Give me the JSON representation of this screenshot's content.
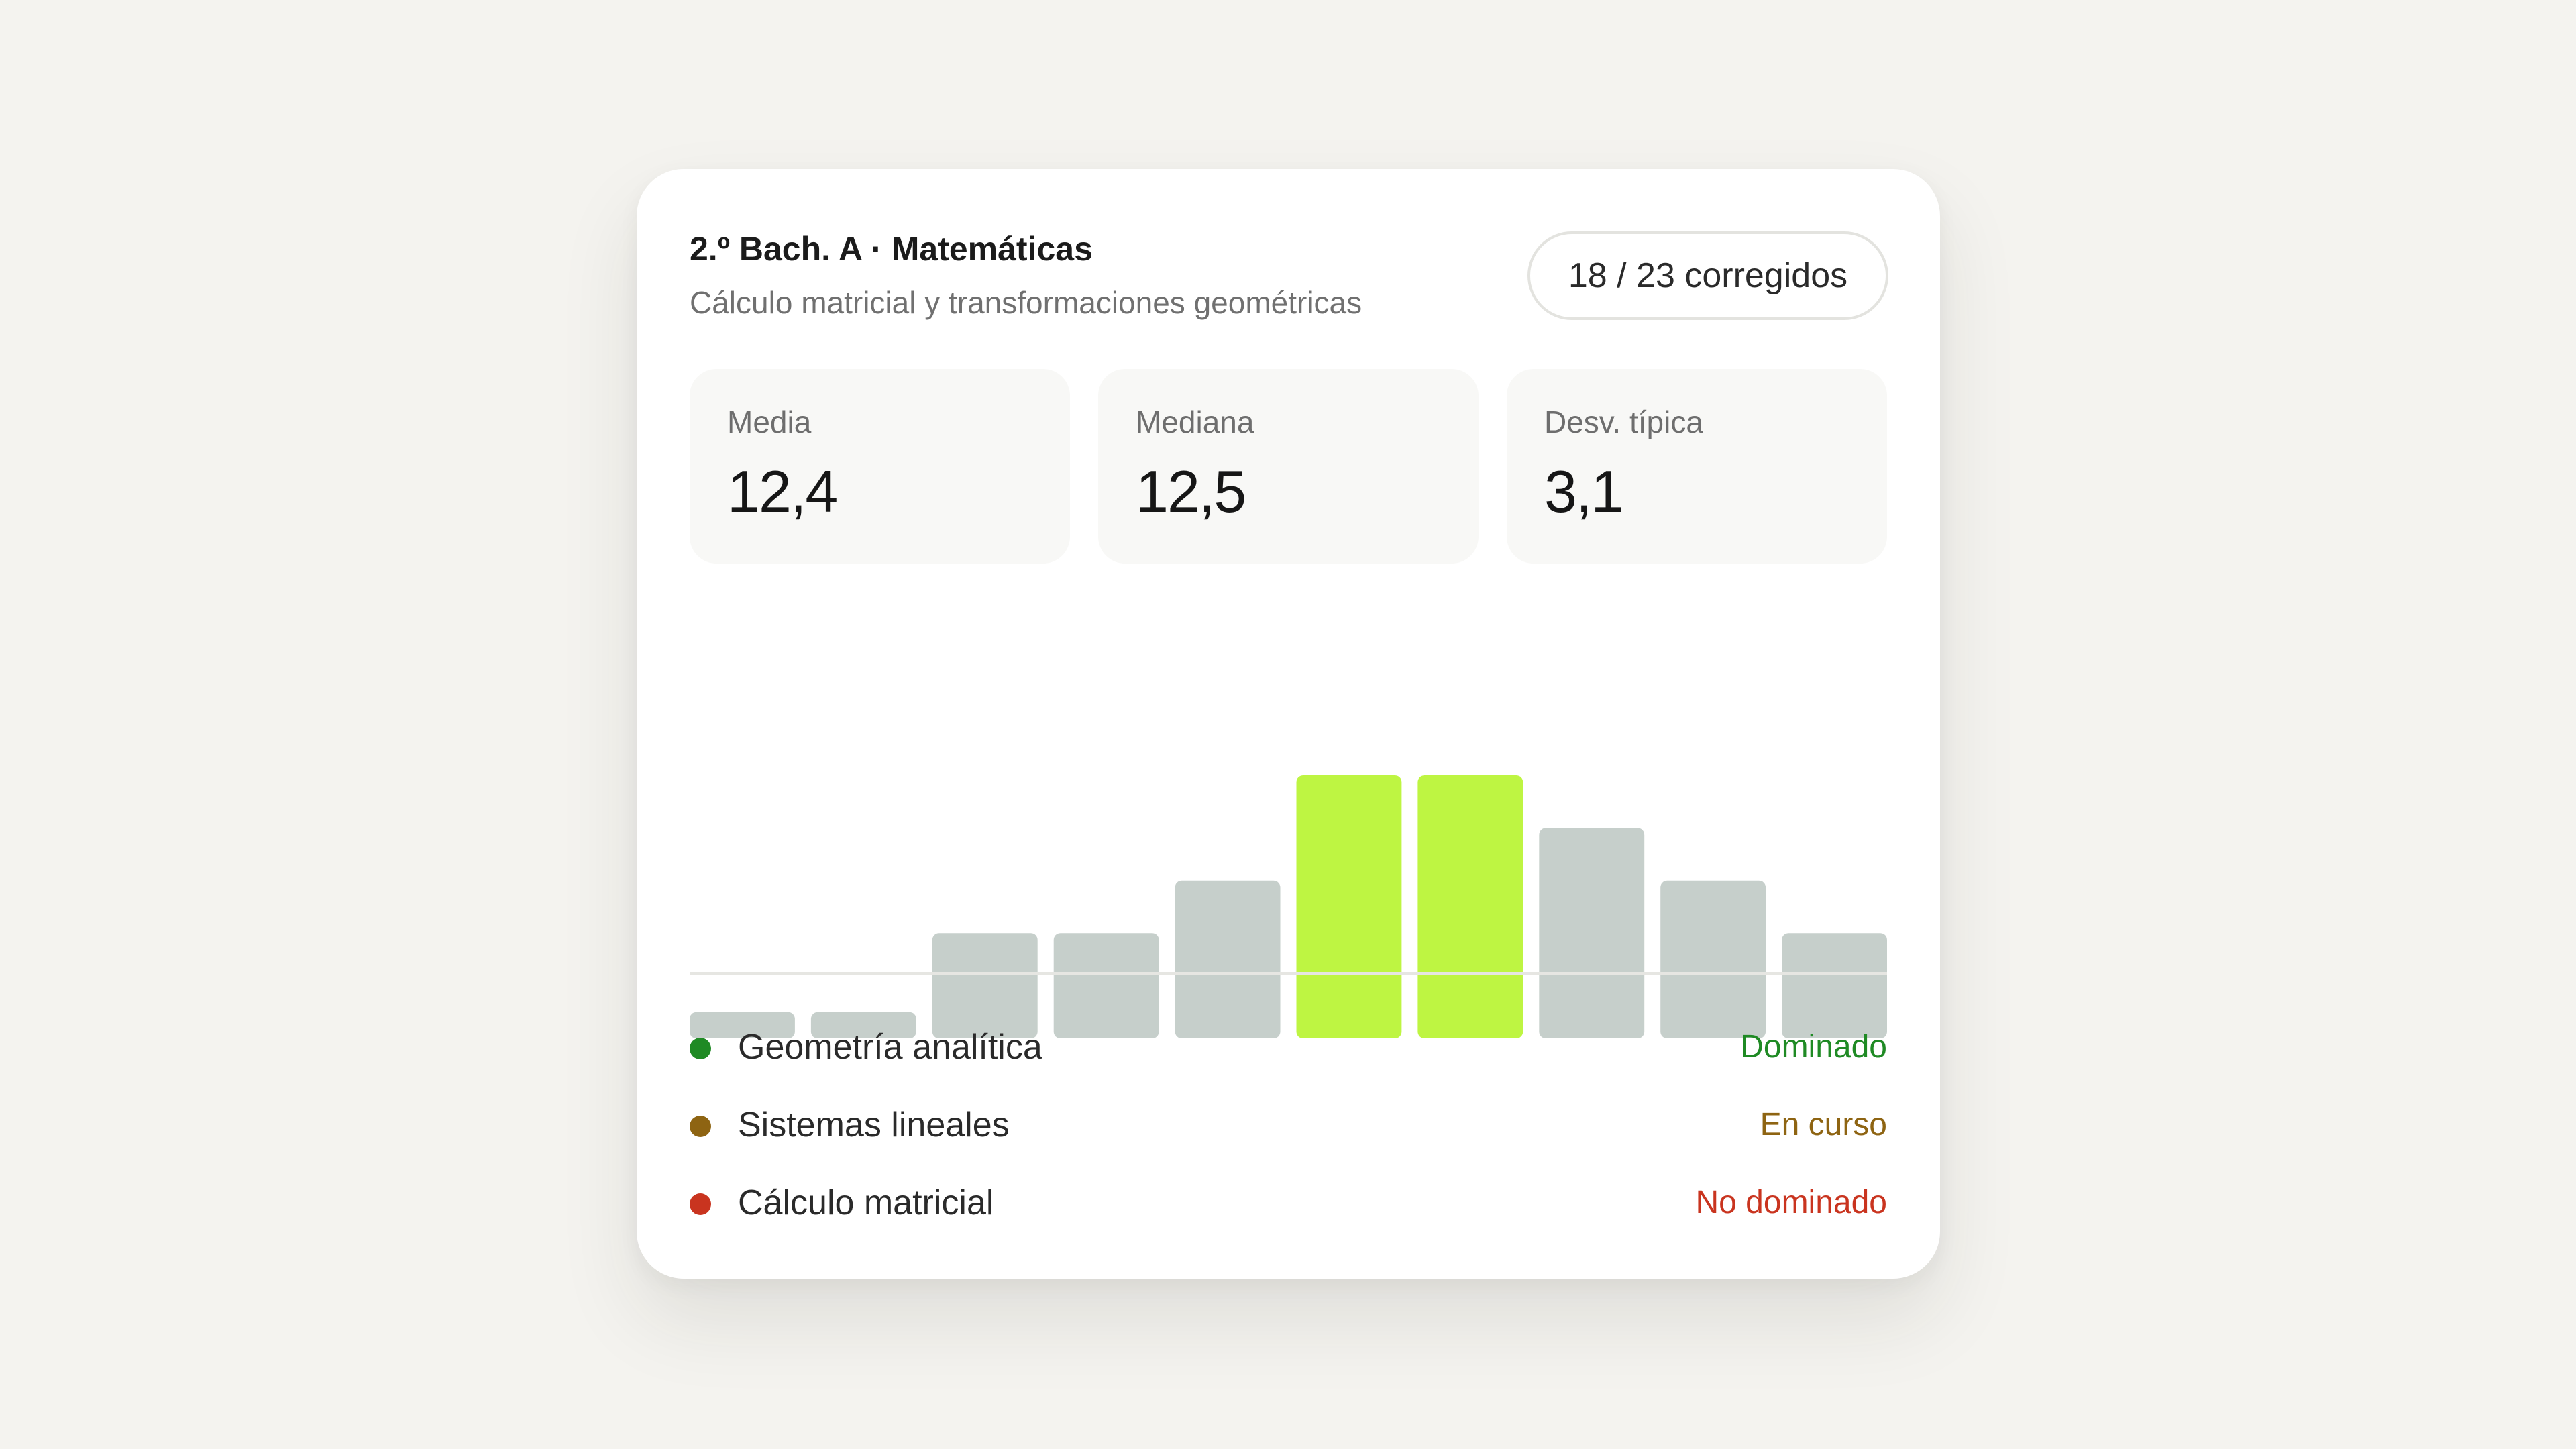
{
  "header": {
    "title": "2.º Bach. A · Matemáticas",
    "subtitle": "Cálculo matricial y transformaciones geométricas",
    "graded_badge": "18 / 23 corregidos"
  },
  "stats": [
    {
      "label": "Media",
      "value": "12,4"
    },
    {
      "label": "Mediana",
      "value": "12,5"
    },
    {
      "label": "Desv. típica",
      "value": "3,1"
    }
  ],
  "chart_data": {
    "type": "bar",
    "bins": [
      {
        "from": 0,
        "to": 2,
        "value": 0.5
      },
      {
        "from": 2,
        "to": 4,
        "value": 0.5
      },
      {
        "from": 4,
        "to": 6,
        "value": 2
      },
      {
        "from": 6,
        "to": 8,
        "value": 2
      },
      {
        "from": 8,
        "to": 10,
        "value": 3
      },
      {
        "from": 10,
        "to": 12,
        "value": 5
      },
      {
        "from": 12,
        "to": 14,
        "value": 5
      },
      {
        "from": 14,
        "to": 16,
        "value": 4
      },
      {
        "from": 16,
        "to": 18,
        "value": 3
      },
      {
        "from": 18,
        "to": 20,
        "value": 2
      }
    ],
    "highlighted_bins": [
      5,
      6
    ],
    "x_ticks": [
      "0",
      "10",
      "20"
    ],
    "xlim": [
      0,
      20
    ],
    "ylim": [
      0,
      5
    ],
    "grid": false,
    "colors": {
      "bar": "#c6cfcb",
      "highlight": "#bef542",
      "tick": "#8a8a8a"
    }
  },
  "topics": [
    {
      "name": "Geometría analítica",
      "status": "Dominado",
      "color": "#1f8a24"
    },
    {
      "name": "Sistemas lineales",
      "status": "En curso",
      "color": "#8e6412"
    },
    {
      "name": "Cálculo matricial",
      "status": "No dominado",
      "color": "#c9341f"
    }
  ],
  "theme": {
    "background": "#f4f3ef",
    "card": "#ffffff",
    "accent": "#bef542"
  }
}
